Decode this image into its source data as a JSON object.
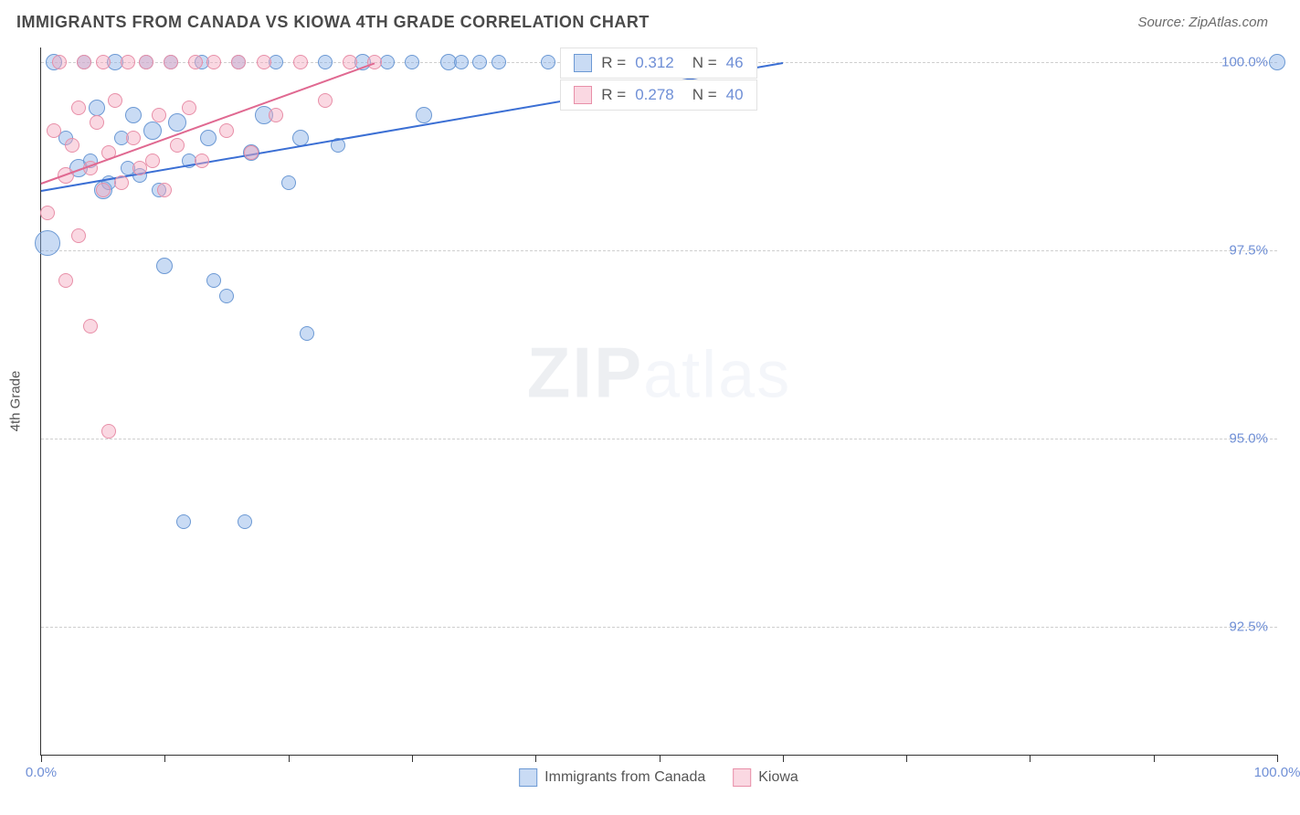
{
  "header": {
    "title": "IMMIGRANTS FROM CANADA VS KIOWA 4TH GRADE CORRELATION CHART",
    "source": "Source: ZipAtlas.com"
  },
  "chart": {
    "type": "scatter",
    "background_color": "#ffffff",
    "grid_color": "#cfcfcf",
    "axis_color": "#333333",
    "yaxis_label": "4th Grade",
    "yaxis_label_fontsize": 15,
    "ylim": [
      90.8,
      100.2
    ],
    "yticks": [
      92.5,
      95.0,
      97.5,
      100.0
    ],
    "ytick_labels": [
      "92.5%",
      "95.0%",
      "97.5%",
      "100.0%"
    ],
    "xlim": [
      0,
      100
    ],
    "xticks": [
      0,
      10,
      20,
      30,
      40,
      50,
      60,
      70,
      80,
      90,
      100
    ],
    "xtick_labels": {
      "0": "0.0%",
      "100": "100.0%"
    },
    "tick_label_color": "#6f8fd6",
    "tick_label_fontsize": 15,
    "watermark": {
      "bold": "ZIP",
      "light": "atlas"
    },
    "series": [
      {
        "name": "Immigrants from Canada",
        "key": "blue",
        "color_fill": "rgba(135,176,230,0.45)",
        "color_stroke": "#6c99d4",
        "trend_color": "#3b6fd4",
        "R": "0.312",
        "N": "46",
        "trend": {
          "x1": 0,
          "y1": 98.3,
          "x2": 60,
          "y2": 100.0
        },
        "points": [
          {
            "x": 0.5,
            "y": 97.6,
            "r": 14
          },
          {
            "x": 1,
            "y": 100.0,
            "r": 9
          },
          {
            "x": 2,
            "y": 99.0,
            "r": 8
          },
          {
            "x": 3,
            "y": 98.6,
            "r": 10
          },
          {
            "x": 3.5,
            "y": 100.0,
            "r": 8
          },
          {
            "x": 4,
            "y": 98.7,
            "r": 8
          },
          {
            "x": 4.5,
            "y": 99.4,
            "r": 9
          },
          {
            "x": 5,
            "y": 98.3,
            "r": 10
          },
          {
            "x": 5.5,
            "y": 98.4,
            "r": 8
          },
          {
            "x": 6,
            "y": 100.0,
            "r": 9
          },
          {
            "x": 6.5,
            "y": 99.0,
            "r": 8
          },
          {
            "x": 7,
            "y": 98.6,
            "r": 8
          },
          {
            "x": 7.5,
            "y": 99.3,
            "r": 9
          },
          {
            "x": 8,
            "y": 98.5,
            "r": 8
          },
          {
            "x": 8.5,
            "y": 100.0,
            "r": 8
          },
          {
            "x": 9,
            "y": 99.1,
            "r": 10
          },
          {
            "x": 9.5,
            "y": 98.3,
            "r": 8
          },
          {
            "x": 10,
            "y": 97.3,
            "r": 9
          },
          {
            "x": 10.5,
            "y": 100.0,
            "r": 8
          },
          {
            "x": 11,
            "y": 99.2,
            "r": 10
          },
          {
            "x": 11.5,
            "y": 93.9,
            "r": 8
          },
          {
            "x": 12,
            "y": 98.7,
            "r": 8
          },
          {
            "x": 13,
            "y": 100.0,
            "r": 8
          },
          {
            "x": 13.5,
            "y": 99.0,
            "r": 9
          },
          {
            "x": 14,
            "y": 97.1,
            "r": 8
          },
          {
            "x": 15,
            "y": 96.9,
            "r": 8
          },
          {
            "x": 16,
            "y": 100.0,
            "r": 8
          },
          {
            "x": 16.5,
            "y": 93.9,
            "r": 8
          },
          {
            "x": 17,
            "y": 98.8,
            "r": 9
          },
          {
            "x": 18,
            "y": 99.3,
            "r": 10
          },
          {
            "x": 19,
            "y": 100.0,
            "r": 8
          },
          {
            "x": 20,
            "y": 98.4,
            "r": 8
          },
          {
            "x": 21,
            "y": 99.0,
            "r": 9
          },
          {
            "x": 21.5,
            "y": 96.4,
            "r": 8
          },
          {
            "x": 23,
            "y": 100.0,
            "r": 8
          },
          {
            "x": 24,
            "y": 98.9,
            "r": 8
          },
          {
            "x": 26,
            "y": 100.0,
            "r": 9
          },
          {
            "x": 28,
            "y": 100.0,
            "r": 8
          },
          {
            "x": 30,
            "y": 100.0,
            "r": 8
          },
          {
            "x": 31,
            "y": 99.3,
            "r": 9
          },
          {
            "x": 33,
            "y": 100.0,
            "r": 9
          },
          {
            "x": 34,
            "y": 100.0,
            "r": 8
          },
          {
            "x": 35.5,
            "y": 100.0,
            "r": 8
          },
          {
            "x": 37,
            "y": 100.0,
            "r": 8
          },
          {
            "x": 41,
            "y": 100.0,
            "r": 8
          },
          {
            "x": 100,
            "y": 100.0,
            "r": 9
          }
        ]
      },
      {
        "name": "Kiowa",
        "key": "pink",
        "color_fill": "rgba(245,168,190,0.45)",
        "color_stroke": "#e88fa8",
        "trend_color": "#e06991",
        "R": "0.278",
        "N": "40",
        "trend": {
          "x1": 0,
          "y1": 98.4,
          "x2": 27,
          "y2": 100.0
        },
        "points": [
          {
            "x": 0.5,
            "y": 98.0,
            "r": 8
          },
          {
            "x": 1,
            "y": 99.1,
            "r": 8
          },
          {
            "x": 1.5,
            "y": 100.0,
            "r": 8
          },
          {
            "x": 2,
            "y": 98.5,
            "r": 9
          },
          {
            "x": 2,
            "y": 97.1,
            "r": 8
          },
          {
            "x": 2.5,
            "y": 98.9,
            "r": 8
          },
          {
            "x": 3,
            "y": 99.4,
            "r": 8
          },
          {
            "x": 3,
            "y": 97.7,
            "r": 8
          },
          {
            "x": 3.5,
            "y": 100.0,
            "r": 8
          },
          {
            "x": 4,
            "y": 98.6,
            "r": 8
          },
          {
            "x": 4,
            "y": 96.5,
            "r": 8
          },
          {
            "x": 4.5,
            "y": 99.2,
            "r": 8
          },
          {
            "x": 5,
            "y": 98.3,
            "r": 8
          },
          {
            "x": 5,
            "y": 100.0,
            "r": 8
          },
          {
            "x": 5.5,
            "y": 98.8,
            "r": 8
          },
          {
            "x": 5.5,
            "y": 95.1,
            "r": 8
          },
          {
            "x": 6,
            "y": 99.5,
            "r": 8
          },
          {
            "x": 6.5,
            "y": 98.4,
            "r": 8
          },
          {
            "x": 7,
            "y": 100.0,
            "r": 8
          },
          {
            "x": 7.5,
            "y": 99.0,
            "r": 8
          },
          {
            "x": 8,
            "y": 98.6,
            "r": 8
          },
          {
            "x": 8.5,
            "y": 100.0,
            "r": 8
          },
          {
            "x": 9,
            "y": 98.7,
            "r": 8
          },
          {
            "x": 9.5,
            "y": 99.3,
            "r": 8
          },
          {
            "x": 10,
            "y": 98.3,
            "r": 8
          },
          {
            "x": 10.5,
            "y": 100.0,
            "r": 8
          },
          {
            "x": 11,
            "y": 98.9,
            "r": 8
          },
          {
            "x": 12,
            "y": 99.4,
            "r": 8
          },
          {
            "x": 12.5,
            "y": 100.0,
            "r": 8
          },
          {
            "x": 13,
            "y": 98.7,
            "r": 8
          },
          {
            "x": 14,
            "y": 100.0,
            "r": 8
          },
          {
            "x": 15,
            "y": 99.1,
            "r": 8
          },
          {
            "x": 16,
            "y": 100.0,
            "r": 8
          },
          {
            "x": 17,
            "y": 98.8,
            "r": 8
          },
          {
            "x": 18,
            "y": 100.0,
            "r": 8
          },
          {
            "x": 19,
            "y": 99.3,
            "r": 8
          },
          {
            "x": 21,
            "y": 100.0,
            "r": 8
          },
          {
            "x": 23,
            "y": 99.5,
            "r": 8
          },
          {
            "x": 25,
            "y": 100.0,
            "r": 8
          },
          {
            "x": 27,
            "y": 100.0,
            "r": 8
          }
        ]
      }
    ],
    "stats_boxes": [
      {
        "series": "blue",
        "left_pct": 42,
        "top_pct": 0
      },
      {
        "series": "pink",
        "left_pct": 42,
        "top_pct": 4.5
      }
    ],
    "legend": {
      "items": [
        "Immigrants from Canada",
        "Kiowa"
      ]
    }
  }
}
